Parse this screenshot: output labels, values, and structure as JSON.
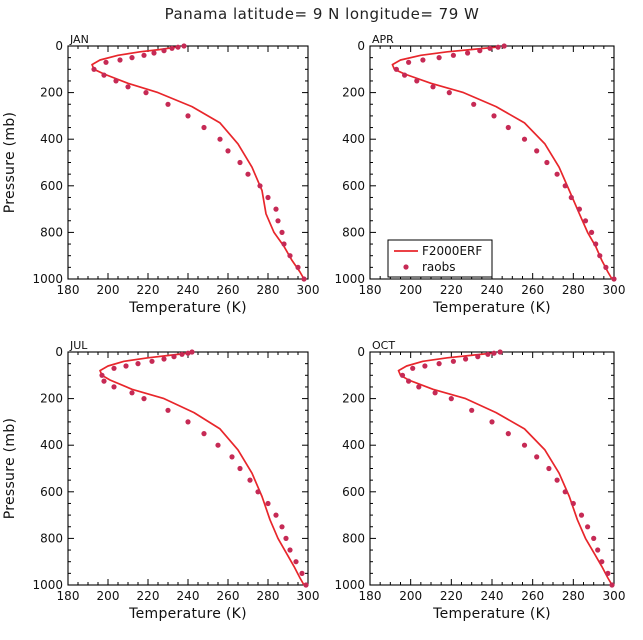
{
  "figure": {
    "title": "Panama  latitude= 9 N longitude= 79 W"
  },
  "legend": {
    "model_label": "F2000ERF",
    "obs_label": "raobs"
  },
  "chart_data": [
    {
      "type": "line",
      "panel_label": "JAN",
      "xlabel": "Temperature (K)",
      "ylabel": "Pressure (mb)",
      "xlim": [
        180,
        300
      ],
      "ylim": [
        1000,
        0
      ],
      "xticks": [
        "180",
        "200",
        "220",
        "240",
        "260",
        "280",
        "300"
      ],
      "yticks": [
        "0",
        "200",
        "400",
        "600",
        "800",
        "1000"
      ],
      "series": [
        {
          "name": "F2000ERF",
          "color": "#e8262b",
          "x": [
            234,
            226,
            216,
            205,
            196,
            192,
            193,
            198,
            210,
            225,
            242,
            256,
            265,
            272,
            277,
            279,
            283,
            288,
            292,
            296,
            298
          ],
          "y": [
            5,
            15,
            25,
            40,
            60,
            80,
            100,
            120,
            160,
            200,
            260,
            330,
            420,
            520,
            620,
            720,
            800,
            860,
            920,
            970,
            1000
          ]
        },
        {
          "name": "raobs",
          "color": "#c62a55",
          "x": [
            238,
            235,
            232,
            228,
            223,
            218,
            212,
            206,
            199,
            193,
            198,
            204,
            210,
            219,
            230,
            240,
            248,
            256,
            260,
            266,
            270,
            276,
            280,
            284,
            285,
            287,
            288,
            291,
            295,
            298
          ],
          "y": [
            0,
            5,
            10,
            20,
            30,
            40,
            50,
            60,
            70,
            100,
            125,
            150,
            175,
            200,
            250,
            300,
            350,
            400,
            450,
            500,
            550,
            600,
            650,
            700,
            750,
            800,
            850,
            900,
            950,
            1000
          ]
        }
      ]
    },
    {
      "type": "line",
      "panel_label": "APR",
      "xlabel": "Temperature (K)",
      "ylabel": "Pressure (mb)",
      "xlim": [
        180,
        300
      ],
      "ylim": [
        1000,
        0
      ],
      "xticks": [
        "180",
        "200",
        "220",
        "240",
        "260",
        "280",
        "300"
      ],
      "yticks": [
        "0",
        "200",
        "400",
        "600",
        "800",
        "1000"
      ],
      "series": [
        {
          "name": "F2000ERF",
          "color": "#e8262b",
          "x": [
            242,
            230,
            218,
            205,
            195,
            191,
            192,
            197,
            210,
            226,
            242,
            256,
            266,
            273,
            278,
            283,
            287,
            291,
            294,
            297,
            299
          ],
          "y": [
            5,
            15,
            25,
            40,
            60,
            80,
            100,
            120,
            160,
            200,
            260,
            330,
            420,
            520,
            620,
            720,
            800,
            860,
            920,
            970,
            1000
          ]
        },
        {
          "name": "raobs",
          "color": "#c62a55",
          "x": [
            246,
            243,
            239,
            234,
            228,
            221,
            214,
            206,
            199,
            193,
            197,
            203,
            211,
            219,
            231,
            241,
            248,
            256,
            262,
            267,
            272,
            276,
            279,
            283,
            286,
            289,
            291,
            293,
            296,
            300
          ],
          "y": [
            0,
            5,
            10,
            20,
            30,
            40,
            50,
            60,
            70,
            100,
            125,
            150,
            175,
            200,
            250,
            300,
            350,
            400,
            450,
            500,
            550,
            600,
            650,
            700,
            750,
            800,
            850,
            900,
            950,
            1000
          ]
        }
      ]
    },
    {
      "type": "line",
      "panel_label": "JUL",
      "xlabel": "Temperature (K)",
      "ylabel": "Pressure (mb)",
      "xlim": [
        180,
        300
      ],
      "ylim": [
        1000,
        0
      ],
      "xticks": [
        "180",
        "200",
        "220",
        "240",
        "260",
        "280",
        "300"
      ],
      "yticks": [
        "0",
        "200",
        "400",
        "600",
        "800",
        "1000"
      ],
      "series": [
        {
          "name": "F2000ERF",
          "color": "#e8262b",
          "x": [
            240,
            230,
            220,
            208,
            200,
            196,
            197,
            201,
            212,
            228,
            243,
            256,
            265,
            272,
            277,
            281,
            285,
            289,
            293,
            296,
            298
          ],
          "y": [
            5,
            15,
            25,
            40,
            60,
            80,
            100,
            120,
            160,
            200,
            260,
            330,
            420,
            520,
            620,
            720,
            800,
            860,
            920,
            970,
            1000
          ]
        },
        {
          "name": "raobs",
          "color": "#c62a55",
          "x": [
            242,
            240,
            237,
            233,
            228,
            222,
            215,
            209,
            203,
            197,
            198,
            203,
            212,
            218,
            230,
            240,
            248,
            255,
            262,
            266,
            271,
            275,
            280,
            284,
            287,
            289,
            291,
            294,
            297,
            299
          ],
          "y": [
            0,
            5,
            10,
            20,
            30,
            40,
            50,
            60,
            70,
            100,
            125,
            150,
            175,
            200,
            250,
            300,
            350,
            400,
            450,
            500,
            550,
            600,
            650,
            700,
            750,
            800,
            850,
            900,
            950,
            1000
          ]
        }
      ]
    },
    {
      "type": "line",
      "panel_label": "OCT",
      "xlabel": "Temperature (K)",
      "ylabel": "Pressure (mb)",
      "xlim": [
        180,
        300
      ],
      "ylim": [
        1000,
        0
      ],
      "xticks": [
        "180",
        "200",
        "220",
        "240",
        "260",
        "280",
        "300"
      ],
      "yticks": [
        "0",
        "200",
        "400",
        "600",
        "800",
        "1000"
      ],
      "series": [
        {
          "name": "F2000ERF",
          "color": "#e8262b",
          "x": [
            240,
            229,
            218,
            206,
            198,
            194,
            195,
            199,
            211,
            227,
            242,
            256,
            266,
            273,
            278,
            282,
            286,
            290,
            294,
            297,
            299
          ],
          "y": [
            5,
            15,
            25,
            40,
            60,
            80,
            100,
            120,
            160,
            200,
            260,
            330,
            420,
            520,
            620,
            720,
            800,
            860,
            920,
            970,
            1000
          ]
        },
        {
          "name": "raobs",
          "color": "#c62a55",
          "x": [
            244,
            241,
            238,
            233,
            227,
            221,
            214,
            207,
            201,
            196,
            199,
            204,
            212,
            220,
            230,
            240,
            248,
            256,
            262,
            268,
            272,
            276,
            280,
            284,
            287,
            290,
            292,
            294,
            297,
            299
          ],
          "y": [
            0,
            5,
            10,
            20,
            30,
            40,
            50,
            60,
            70,
            100,
            125,
            150,
            175,
            200,
            250,
            300,
            350,
            400,
            450,
            500,
            550,
            600,
            650,
            700,
            750,
            800,
            850,
            900,
            950,
            1000
          ]
        }
      ]
    }
  ]
}
